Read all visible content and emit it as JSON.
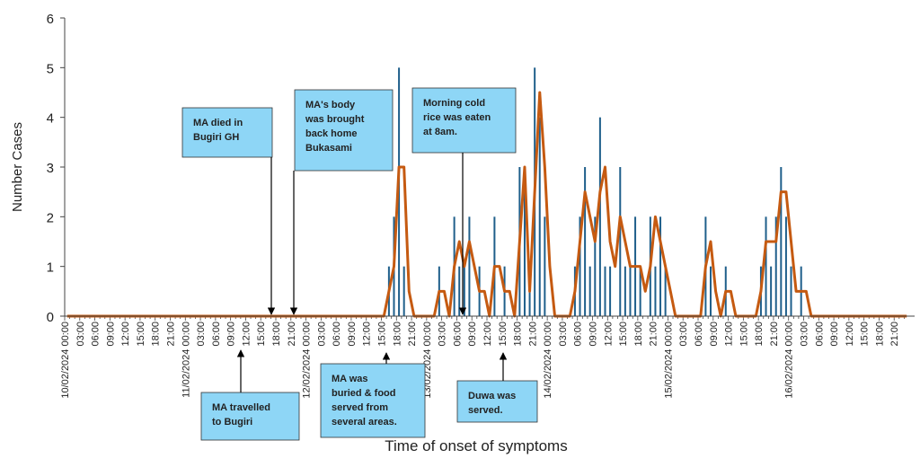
{
  "chart_data": {
    "type": "bar",
    "xlabel": "Time of onset of symptoms",
    "ylabel": "Number Cases",
    "ylim": [
      0,
      6
    ],
    "yticks": [
      0,
      1,
      2,
      3,
      4,
      5,
      6
    ],
    "categories": [
      "10/02/2024 00:00",
      null,
      null,
      "03:00",
      null,
      null,
      "06:00",
      null,
      null,
      "09:00",
      null,
      null,
      "12:00",
      null,
      null,
      "15:00",
      null,
      null,
      "18:00",
      null,
      null,
      "21:00",
      null,
      null,
      "11/02/2024 00:00",
      null,
      null,
      "03:00",
      null,
      null,
      "06:00",
      null,
      null,
      "09:00",
      null,
      null,
      "12:00",
      null,
      null,
      "15:00",
      null,
      null,
      "18:00",
      null,
      null,
      "21:00",
      null,
      null,
      "12/02/2024 00:00",
      null,
      null,
      "03:00",
      null,
      null,
      "06:00",
      null,
      null,
      "09:00",
      null,
      null,
      "12:00",
      null,
      null,
      "15:00",
      null,
      null,
      "18:00",
      null,
      null,
      "21:00",
      null,
      null,
      "13/02/2024 00:00",
      null,
      null,
      "03:00",
      null,
      null,
      "06:00",
      null,
      null,
      "09:00",
      null,
      null,
      "12:00",
      null,
      null,
      "15:00",
      null,
      null,
      "18:00",
      null,
      null,
      "21:00",
      null,
      null,
      "14/02/2024 00:00",
      null,
      null,
      "03:00",
      null,
      null,
      "06:00",
      null,
      null,
      "09:00",
      null,
      null,
      "12:00",
      null,
      null,
      "15:00",
      null,
      null,
      "18:00",
      null,
      null,
      "21:00",
      null,
      null,
      "15/02/2024 00:00",
      null,
      null,
      "03:00",
      null,
      null,
      "06:00",
      null,
      null,
      "09:00",
      null,
      null,
      "12:00",
      null,
      null,
      "15:00",
      null,
      null,
      "18:00",
      null,
      null,
      "21:00",
      null,
      null,
      "16/02/2024 00:00",
      null,
      null,
      "03:00",
      null,
      null,
      "06:00",
      null,
      null,
      "09:00",
      null,
      null,
      "12:00",
      null,
      null,
      "15:00",
      null,
      null,
      "18:00",
      null,
      null,
      "21:00",
      null,
      null
    ],
    "series": [
      {
        "type": "bar",
        "color": "#1f5f8b",
        "values": [
          0,
          0,
          0,
          0,
          0,
          0,
          0,
          0,
          0,
          0,
          0,
          0,
          0,
          0,
          0,
          0,
          0,
          0,
          0,
          0,
          0,
          0,
          0,
          0,
          0,
          0,
          0,
          0,
          0,
          0,
          0,
          0,
          0,
          0,
          0,
          0,
          0,
          0,
          0,
          0,
          0,
          0,
          0,
          0,
          0,
          0,
          0,
          0,
          0,
          0,
          0,
          0,
          0,
          0,
          0,
          0,
          0,
          0,
          0,
          0,
          0,
          0,
          0,
          0,
          1,
          2,
          5,
          1,
          0,
          0,
          0,
          0,
          0,
          0,
          1,
          0,
          0,
          2,
          1,
          1,
          2,
          0,
          1,
          0,
          0,
          2,
          0,
          1,
          0,
          0,
          3,
          3,
          1,
          5,
          4,
          2,
          0,
          0,
          0,
          0,
          0,
          1,
          2,
          3,
          1,
          2,
          4,
          1,
          1,
          0,
          3,
          1,
          1,
          2,
          1,
          0,
          2,
          1,
          2,
          1,
          0,
          0,
          0,
          0,
          0,
          0,
          0,
          2,
          1,
          0,
          0,
          1,
          0,
          0,
          0,
          0,
          0,
          0,
          1,
          2,
          1,
          2,
          3,
          2,
          1,
          0,
          1,
          0,
          0,
          0,
          0,
          0,
          0,
          0,
          0,
          0,
          0,
          0,
          0,
          0,
          0,
          0,
          0,
          0,
          0,
          0,
          0,
          0
        ]
      },
      {
        "type": "line",
        "color": "#c55a11",
        "values": [
          0,
          0,
          0,
          0,
          0,
          0,
          0,
          0,
          0,
          0,
          0,
          0,
          0,
          0,
          0,
          0,
          0,
          0,
          0,
          0,
          0,
          0,
          0,
          0,
          0,
          0,
          0,
          0,
          0,
          0,
          0,
          0,
          0,
          0,
          0,
          0,
          0,
          0,
          0,
          0,
          0,
          0,
          0,
          0,
          0,
          0,
          0,
          0,
          0,
          0,
          0,
          0,
          0,
          0,
          0,
          0,
          0,
          0,
          0,
          0,
          0,
          0,
          0,
          0,
          0.5,
          1,
          3,
          3,
          0.5,
          0,
          0,
          0,
          0,
          0,
          0.5,
          0.5,
          0,
          1,
          1.5,
          1,
          1.5,
          1,
          0.5,
          0.5,
          0,
          1,
          1,
          0.5,
          0.5,
          0,
          1.5,
          3,
          0.5,
          2.5,
          4.5,
          3,
          1,
          0,
          0,
          0,
          0,
          0.5,
          1.5,
          2.5,
          2,
          1.5,
          2.5,
          3,
          1.5,
          1,
          2,
          1.5,
          1,
          1,
          1,
          0.5,
          1,
          2,
          1.5,
          1,
          0.5,
          0,
          0,
          0,
          0,
          0,
          0,
          1,
          1.5,
          0.5,
          0,
          0.5,
          0.5,
          0,
          0,
          0,
          0,
          0,
          0.5,
          1.5,
          1.5,
          1.5,
          2.5,
          2.5,
          1.5,
          0.5,
          0.5,
          0.5,
          0,
          0,
          0,
          0,
          0,
          0,
          0,
          0,
          0,
          0,
          0,
          0,
          0,
          0,
          0,
          0,
          0,
          0,
          0,
          0
        ]
      }
    ],
    "annotations": [
      {
        "lines": [
          "MA died in",
          "Bugiri GH"
        ]
      },
      {
        "lines": [
          "MA's body",
          "was brought",
          "back home",
          "Bukasami"
        ]
      },
      {
        "lines": [
          "Morning cold",
          "rice was eaten",
          "at 8am."
        ]
      },
      {
        "lines": [
          "MA travelled",
          "to Bugiri"
        ]
      },
      {
        "lines": [
          "MA was",
          "buried & food",
          "served from",
          "several areas."
        ]
      },
      {
        "lines": [
          "Duwa was",
          "served."
        ]
      }
    ]
  }
}
